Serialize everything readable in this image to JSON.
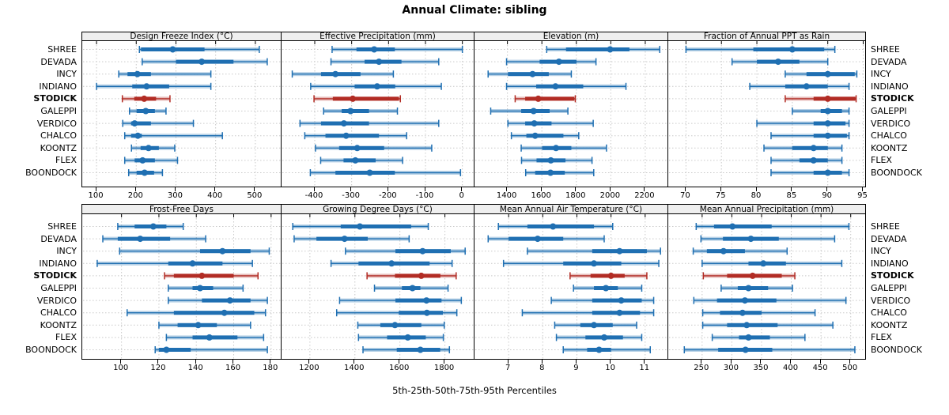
{
  "title": "Annual Climate: sibling",
  "caption": "5th-25th-50th-75th-95th Percentiles",
  "sites": [
    "SHREE",
    "DEVADA",
    "INCY",
    "INDIANO",
    "STODICK",
    "GALEPPI",
    "VERDICO",
    "CHALCO",
    "KOONTZ",
    "FLEX",
    "BOONDOCK"
  ],
  "highlight_site": "STODICK",
  "percentile_labels": [
    "p5",
    "p25",
    "p50",
    "p75",
    "p95"
  ],
  "colors": {
    "series": "#1f6fb2",
    "series_band": "rgba(31,111,178,0.32)",
    "highlight": "#b22c24",
    "highlight_band": "rgba(178,44,36,0.32)",
    "grid": "#c9c9c9",
    "strip_bg": "#efefef",
    "border": "#000000"
  },
  "chart_data": [
    {
      "type": "interval",
      "strip_title": "Design Freeze Index (°C)",
      "ticks": [
        100,
        200,
        300,
        400,
        500
      ],
      "domain": [
        64,
        568
      ],
      "values": [
        [
          208,
          212,
          292,
          372,
          510
        ],
        [
          215,
          300,
          365,
          445,
          530
        ],
        [
          156,
          178,
          203,
          237,
          388
        ],
        [
          100,
          190,
          226,
          283,
          388
        ],
        [
          165,
          195,
          220,
          250,
          285
        ],
        [
          183,
          201,
          224,
          247,
          275
        ],
        [
          166,
          187,
          196,
          237,
          344
        ],
        [
          171,
          187,
          204,
          214,
          417
        ],
        [
          188,
          211,
          231,
          257,
          297
        ],
        [
          171,
          196,
          216,
          247,
          304
        ],
        [
          181,
          201,
          221,
          245,
          266
        ]
      ]
    },
    {
      "type": "interval",
      "strip_title": "Effective Precipitation (mm)",
      "ticks": [
        -400,
        -300,
        -200,
        -100,
        0
      ],
      "domain": [
        -490,
        35
      ],
      "values": [
        [
          -353,
          -287,
          -239,
          -183,
          0
        ],
        [
          -356,
          -265,
          -226,
          -165,
          -64
        ],
        [
          -461,
          -383,
          -344,
          -276,
          -187
        ],
        [
          -411,
          -292,
          -231,
          -182,
          -57
        ],
        [
          -402,
          -351,
          -297,
          -172,
          -168
        ],
        [
          -376,
          -327,
          -303,
          -253,
          -176
        ],
        [
          -440,
          -383,
          -321,
          -253,
          -64
        ],
        [
          -427,
          -371,
          -315,
          -226,
          -151
        ],
        [
          -398,
          -334,
          -285,
          -212,
          -83
        ],
        [
          -384,
          -322,
          -290,
          -235,
          -162
        ],
        [
          -412,
          -344,
          -251,
          -183,
          -5
        ]
      ]
    },
    {
      "type": "interval",
      "strip_title": "Elevation (m)",
      "ticks": [
        1400,
        1600,
        1800,
        2000,
        2200
      ],
      "domain": [
        1209,
        2338
      ],
      "values": [
        [
          1628,
          1740,
          1996,
          2108,
          2284
        ],
        [
          1395,
          1587,
          1699,
          1801,
          1914
        ],
        [
          1288,
          1403,
          1546,
          1640,
          1771
        ],
        [
          1395,
          1567,
          1679,
          1840,
          2088
        ],
        [
          1445,
          1503,
          1579,
          1788,
          1794
        ],
        [
          1303,
          1480,
          1552,
          1645,
          1751
        ],
        [
          1403,
          1503,
          1556,
          1656,
          1898
        ],
        [
          1423,
          1510,
          1561,
          1725,
          1814
        ],
        [
          1480,
          1602,
          1682,
          1771,
          1975
        ],
        [
          1482,
          1569,
          1652,
          1737,
          1891
        ],
        [
          1506,
          1561,
          1650,
          1733,
          1901
        ]
      ]
    },
    {
      "type": "interval",
      "strip_title": "Fraction of Annual PPT as Rain",
      "ticks": [
        70,
        75,
        80,
        85,
        90,
        95
      ],
      "domain": [
        67.5,
        95.5
      ],
      "values": [
        [
          70,
          79.5,
          85,
          89.5,
          91
        ],
        [
          76.5,
          80,
          83,
          86,
          90
        ],
        [
          84,
          87,
          90,
          93.8,
          94.1
        ],
        [
          79,
          84,
          87,
          90,
          93
        ],
        [
          84,
          88,
          90,
          93.9,
          94
        ],
        [
          85,
          89,
          90,
          92,
          93
        ],
        [
          80,
          88,
          90,
          92.5,
          93
        ],
        [
          82,
          88,
          90,
          92.7,
          93
        ],
        [
          81,
          85,
          88,
          90,
          92
        ],
        [
          82,
          86,
          88,
          90,
          92
        ],
        [
          82,
          88,
          90,
          92,
          93
        ]
      ]
    },
    {
      "type": "interval",
      "strip_title": "Frost-Free Days",
      "ticks": [
        100,
        120,
        140,
        160,
        180
      ],
      "domain": [
        79,
        186
      ],
      "values": [
        [
          98,
          107,
          117,
          124,
          133
        ],
        [
          90,
          98,
          110,
          126,
          145
        ],
        [
          99,
          142,
          154,
          169,
          179
        ],
        [
          87,
          125,
          138,
          154,
          170
        ],
        [
          123,
          128,
          143,
          160,
          173
        ],
        [
          125,
          138,
          142,
          149,
          165
        ],
        [
          125,
          143,
          158,
          169,
          178
        ],
        [
          103,
          128,
          155,
          171,
          177
        ],
        [
          120,
          130,
          141,
          151,
          169
        ],
        [
          124,
          138,
          147,
          162,
          176
        ],
        [
          118,
          120,
          124,
          137,
          178
        ]
      ]
    },
    {
      "type": "interval",
      "strip_title": "Growing Degree Days (°C)",
      "ticks": [
        1200,
        1400,
        1600,
        1800
      ],
      "domain": [
        1074,
        1935
      ],
      "values": [
        [
          1124,
          1337,
          1422,
          1650,
          1726
        ],
        [
          1130,
          1229,
          1354,
          1457,
          1641
        ],
        [
          1358,
          1580,
          1701,
          1826,
          1890
        ],
        [
          1294,
          1416,
          1563,
          1732,
          1832
        ],
        [
          1454,
          1578,
          1695,
          1780,
          1850
        ],
        [
          1487,
          1609,
          1656,
          1691,
          1814
        ],
        [
          1332,
          1580,
          1718,
          1785,
          1873
        ],
        [
          1319,
          1595,
          1720,
          1791,
          1853
        ],
        [
          1413,
          1513,
          1578,
          1695,
          1797
        ],
        [
          1416,
          1543,
          1635,
          1715,
          1793
        ],
        [
          1436,
          1586,
          1691,
          1779,
          1820
        ]
      ]
    },
    {
      "type": "interval",
      "strip_title": "Mean Annual Air Temperature (°C)",
      "ticks": [
        7,
        8,
        9,
        10,
        11
      ],
      "domain": [
        6.0,
        11.7
      ],
      "values": [
        [
          6.7,
          7.55,
          8.3,
          9.5,
          10.05
        ],
        [
          6.4,
          7.0,
          7.85,
          8.6,
          9.8
        ],
        [
          7.55,
          9.45,
          10.25,
          11.05,
          11.45
        ],
        [
          6.85,
          8.6,
          9.5,
          10.3,
          11.4
        ],
        [
          8.8,
          9.4,
          10.0,
          10.4,
          11.05
        ],
        [
          8.9,
          9.5,
          9.85,
          10.2,
          10.9
        ],
        [
          8.25,
          9.45,
          10.3,
          10.9,
          11.25
        ],
        [
          7.4,
          9.45,
          10.25,
          10.85,
          11.25
        ],
        [
          8.35,
          9.1,
          9.5,
          10.05,
          10.75
        ],
        [
          8.4,
          9.25,
          9.8,
          10.35,
          10.9
        ],
        [
          8.6,
          9.3,
          9.65,
          10.0,
          11.15
        ]
      ]
    },
    {
      "type": "interval",
      "strip_title": "Mean Annual Precipitation (mm)",
      "ticks": [
        250,
        300,
        350,
        400,
        450,
        500
      ],
      "domain": [
        193,
        527
      ],
      "values": [
        [
          240,
          270,
          301,
          367,
          497
        ],
        [
          248,
          285,
          332,
          379,
          473
        ],
        [
          235,
          258,
          286,
          322,
          393
        ],
        [
          250,
          328,
          353,
          391,
          485
        ],
        [
          252,
          292,
          335,
          384,
          406
        ],
        [
          282,
          310,
          328,
          361,
          402
        ],
        [
          236,
          275,
          322,
          375,
          492
        ],
        [
          251,
          280,
          318,
          350,
          440
        ],
        [
          251,
          292,
          325,
          377,
          470
        ],
        [
          267,
          312,
          328,
          364,
          423
        ],
        [
          220,
          277,
          323,
          368,
          507
        ]
      ]
    }
  ]
}
